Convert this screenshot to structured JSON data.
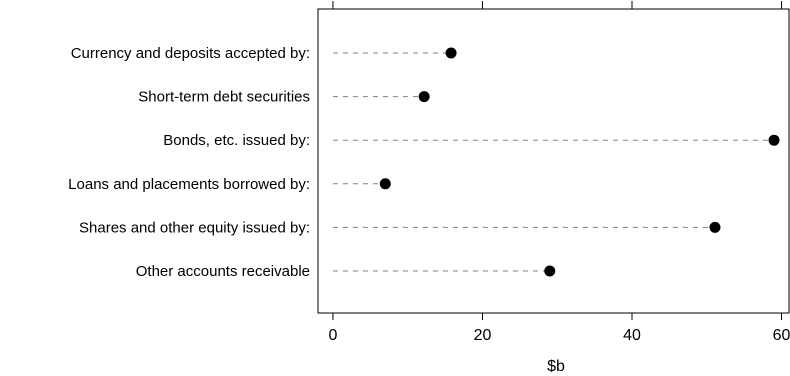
{
  "chart_data": {
    "type": "dot",
    "title": "",
    "xlabel": "$b",
    "ylabel": "",
    "xlim": [
      -2,
      61
    ],
    "xticks": [
      0,
      20,
      40,
      60
    ],
    "categories": [
      "Currency and deposits accepted by:",
      "Short-term debt securities",
      "Bonds, etc. issued by:",
      "Loans and placements borrowed by:",
      "Shares and other equity issued by:",
      "Other accounts receivable"
    ],
    "values": [
      15.8,
      12.2,
      59.0,
      7.0,
      51.1,
      29.0
    ],
    "grid": false,
    "leader_lines": "dashed",
    "colors": {
      "marker": "#000000",
      "leader": "#808080",
      "frame": "#000000"
    }
  }
}
